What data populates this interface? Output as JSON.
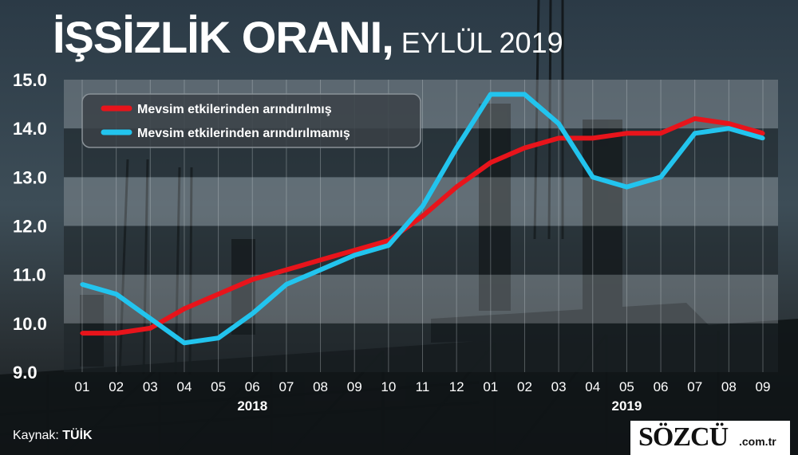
{
  "title": {
    "main": "İŞSİZLİK ORANI,",
    "sub": "EYLÜL 2019"
  },
  "source": {
    "label": "Kaynak:",
    "value": "TÜİK"
  },
  "brand": {
    "name": "SÖZCÜ",
    "suffix": ".com.tr"
  },
  "colors": {
    "red": "#e8141b",
    "blue": "#22c4ee"
  },
  "chart_data": {
    "type": "line",
    "title": "İŞSİZLİK ORANI, EYLÜL 2019",
    "ylim": [
      9.0,
      15.0
    ],
    "yticks": [
      "9.0",
      "10.0",
      "11.0",
      "12.0",
      "13.0",
      "14.0",
      "15.0"
    ],
    "categories": [
      "01",
      "02",
      "03",
      "04",
      "05",
      "06",
      "07",
      "08",
      "09",
      "10",
      "11",
      "12",
      "01",
      "02",
      "03",
      "04",
      "05",
      "06",
      "07",
      "08",
      "09"
    ],
    "year_labels": [
      {
        "label": "2018",
        "center_index": 5
      },
      {
        "label": "2019",
        "center_index": 16
      }
    ],
    "series": [
      {
        "name": "Mevsim etkilerinden arındırılmış",
        "color": "#e8141b",
        "values": [
          9.8,
          9.8,
          9.9,
          10.3,
          10.6,
          10.9,
          11.1,
          11.3,
          11.5,
          11.7,
          12.2,
          12.8,
          13.3,
          13.6,
          13.8,
          13.8,
          13.9,
          13.9,
          14.2,
          14.1,
          13.9
        ]
      },
      {
        "name": "Mevsim etkilerinden arındırılmamış",
        "color": "#22c4ee",
        "values": [
          10.8,
          10.6,
          10.1,
          9.6,
          9.7,
          10.2,
          10.8,
          11.1,
          11.4,
          11.6,
          12.4,
          13.6,
          14.7,
          14.7,
          14.1,
          13.0,
          12.8,
          13.0,
          13.9,
          14.0,
          13.8
        ]
      }
    ],
    "legend_position": "top-left",
    "grid": true
  }
}
